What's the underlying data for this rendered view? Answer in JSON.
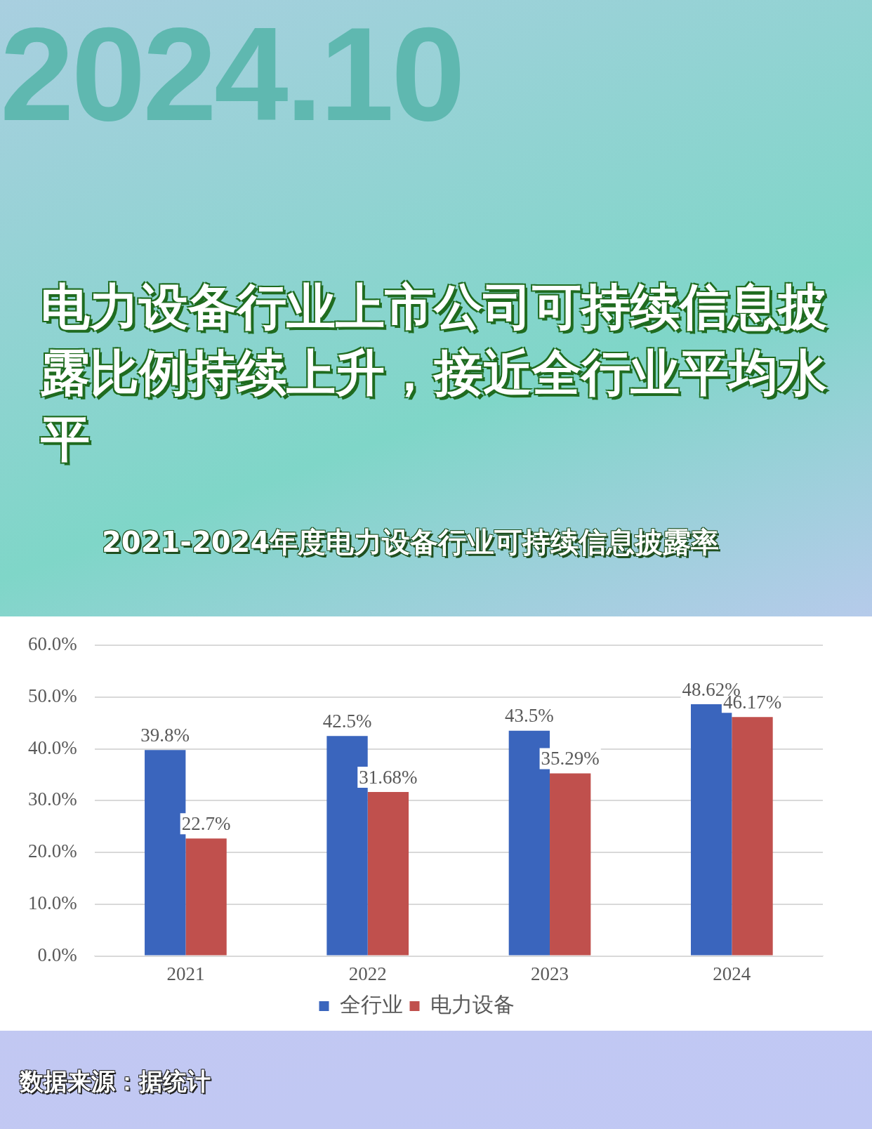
{
  "chart_data": {
    "type": "bar",
    "title": "电力设备行业上市公司可持续信息披露比例持续上升，接近全行业平均水平",
    "subtitle": "2021-2024年度电力设备行业可持续信息披露率",
    "categories": [
      "2021",
      "2022",
      "2023",
      "2024"
    ],
    "series": [
      {
        "name": "全行业",
        "color": "#3a65bd",
        "values": [
          39.8,
          42.5,
          43.5,
          48.62
        ],
        "value_labels": [
          "39.8%",
          "42.5%",
          "43.5%",
          "48.62%"
        ]
      },
      {
        "name": "电力设备",
        "color": "#c0504d",
        "values": [
          22.7,
          31.68,
          35.29,
          46.17
        ],
        "value_labels": [
          "22.7%",
          "31.68%",
          "35.29%",
          "46.17%"
        ]
      }
    ],
    "ylim": [
      0,
      60
    ],
    "yticks": [
      {
        "value": 0,
        "label": "0.0%"
      },
      {
        "value": 10,
        "label": "10.0%"
      },
      {
        "value": 20,
        "label": "20.0%"
      },
      {
        "value": 30,
        "label": "30.0%"
      },
      {
        "value": 40,
        "label": "40.0%"
      },
      {
        "value": 50,
        "label": "50.0%"
      },
      {
        "value": 60,
        "label": "60.0%"
      }
    ],
    "grid": "y",
    "legend": "bottom",
    "annotations": [
      "2024.10",
      "数据来源：据统计"
    ]
  }
}
